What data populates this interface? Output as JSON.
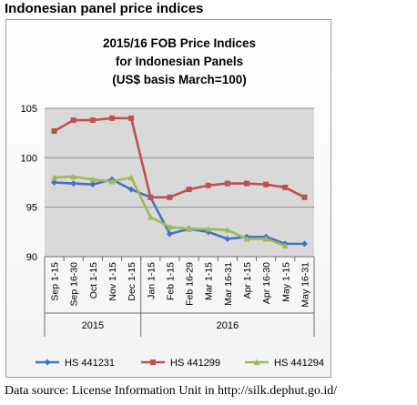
{
  "page": {
    "heading": "Indonesian panel price indices"
  },
  "source_note": "Data source: License Information Unit in http://silk.dephut.go.id/",
  "chart_data": {
    "type": "line",
    "title_lines": [
      "2015/16 FOB Price Indices",
      "for Indonesian Panels",
      "(US$ basis March=100)"
    ],
    "ylim": [
      90,
      105
    ],
    "yticks": [
      90,
      95,
      100,
      105
    ],
    "grid": true,
    "plot_background": "#d9d9d9",
    "legend_position": "bottom",
    "categories": [
      "Sep 1-15",
      "Sep 16-30",
      "Oct 1-15",
      "Nov 1-15",
      "Dec 1-15",
      "Jan 1-15",
      "Feb 1-15",
      "Feb 16-29",
      "Mar 1-15",
      "Mar 16-31",
      "Apr 1-15",
      "Apr 16-30",
      "May 1-15",
      "May 16-31"
    ],
    "year_groups": [
      {
        "label": "2015",
        "span": 5
      },
      {
        "label": "2016",
        "span": 9
      }
    ],
    "series": [
      {
        "name": "HS 441231",
        "color": "#4472c4",
        "marker": "diamond",
        "values": [
          97.5,
          97.4,
          97.3,
          97.8,
          96.8,
          96.0,
          92.3,
          92.8,
          92.5,
          91.8,
          92.0,
          92.0,
          91.3,
          91.3
        ]
      },
      {
        "name": "HS 441299",
        "color": "#c0504d",
        "marker": "square",
        "values": [
          102.7,
          103.8,
          103.8,
          104.0,
          104.0,
          96.0,
          96.0,
          96.8,
          97.2,
          97.4,
          97.4,
          97.3,
          97.0,
          96.0
        ]
      },
      {
        "name": "HS 441294",
        "color": "#9bbb59",
        "marker": "triangle",
        "values": [
          98.0,
          98.1,
          97.8,
          97.6,
          98.0,
          94.0,
          93.0,
          92.8,
          92.8,
          92.7,
          91.8,
          91.8,
          91.1,
          null
        ]
      }
    ]
  }
}
